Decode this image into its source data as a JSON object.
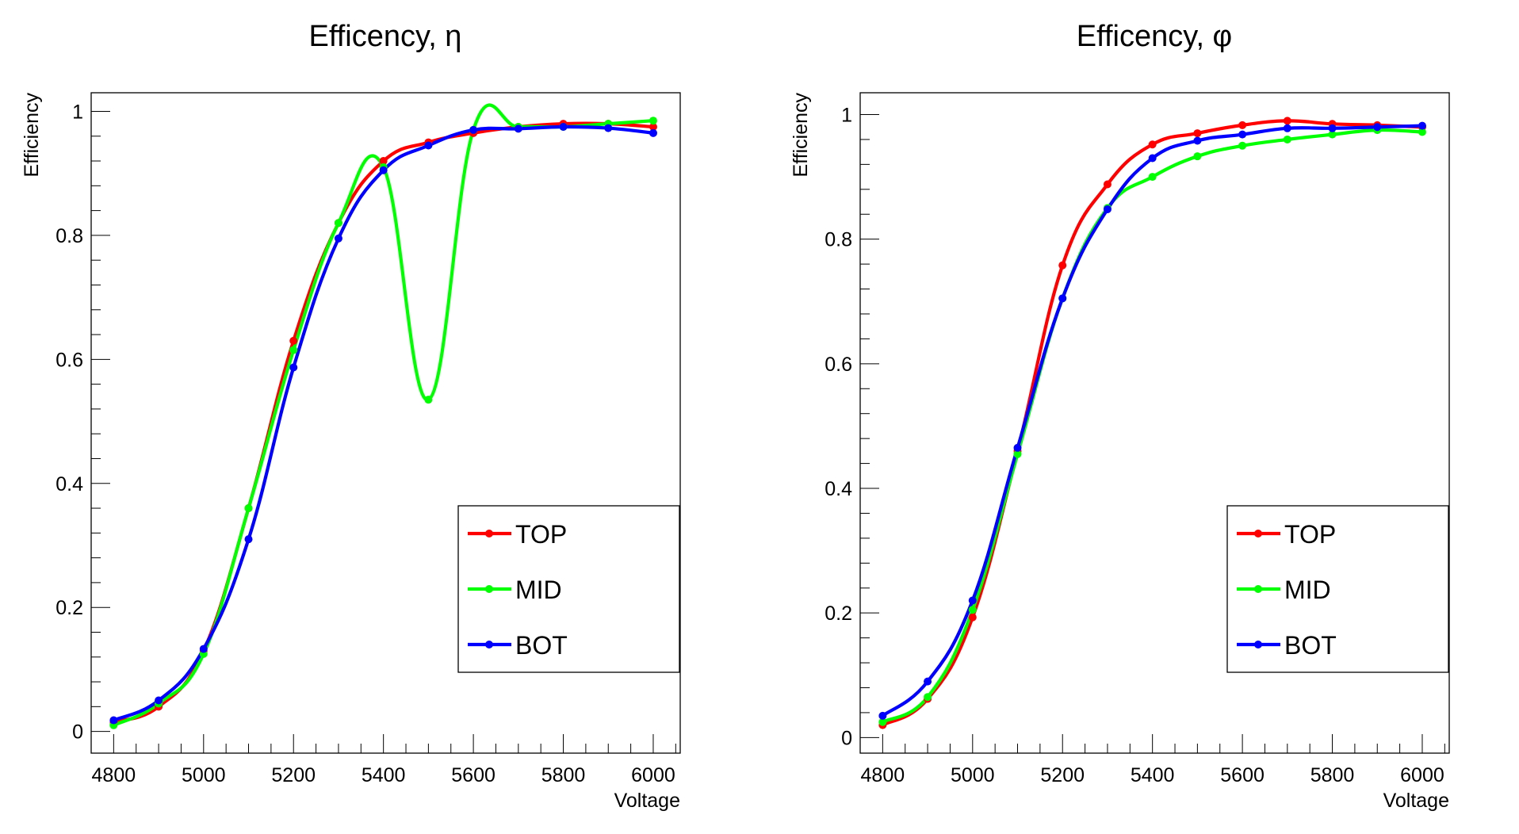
{
  "chart_data": [
    {
      "type": "line",
      "title": "Efficency, η",
      "xlabel": "Voltage",
      "ylabel": "Efficiency",
      "xlim": [
        4750,
        6060
      ],
      "ylim": [
        -0.035,
        1.03
      ],
      "x_ticks": [
        "4800",
        "5000",
        "5200",
        "5400",
        "5600",
        "5800",
        "6000"
      ],
      "y_ticks": [
        "0",
        "0.2",
        "0.4",
        "0.6",
        "0.8",
        "1"
      ],
      "legend_position": "bottom-right",
      "smooth": true,
      "grid": false,
      "x": [
        4800,
        4900,
        5000,
        5100,
        5200,
        5300,
        5400,
        5500,
        5600,
        5700,
        5800,
        5900,
        6000
      ],
      "series": [
        {
          "name": "TOP",
          "color": "#ff0000",
          "values": [
            0.015,
            0.04,
            0.13,
            0.36,
            0.63,
            0.82,
            0.92,
            0.95,
            0.965,
            0.975,
            0.98,
            0.98,
            0.975
          ]
        },
        {
          "name": "MID",
          "color": "#00ff00",
          "values": [
            0.01,
            0.045,
            0.125,
            0.36,
            0.615,
            0.82,
            0.91,
            0.535,
            0.97,
            0.975,
            0.975,
            0.98,
            0.985
          ]
        },
        {
          "name": "BOT",
          "color": "#0000ff",
          "values": [
            0.018,
            0.05,
            0.133,
            0.31,
            0.587,
            0.795,
            0.905,
            0.945,
            0.97,
            0.972,
            0.975,
            0.973,
            0.965
          ]
        }
      ]
    },
    {
      "type": "line",
      "title": "Efficency, φ",
      "xlabel": "Voltage",
      "ylabel": "Efficiency",
      "xlim": [
        4750,
        6060
      ],
      "ylim": [
        -0.025,
        1.035
      ],
      "x_ticks": [
        "4800",
        "5000",
        "5200",
        "5400",
        "5600",
        "5800",
        "6000"
      ],
      "y_ticks": [
        "0",
        "0.2",
        "0.4",
        "0.6",
        "0.8",
        "1"
      ],
      "legend_position": "bottom-right",
      "smooth": true,
      "grid": false,
      "x": [
        4800,
        4900,
        5000,
        5100,
        5200,
        5300,
        5400,
        5500,
        5600,
        5700,
        5800,
        5900,
        6000
      ],
      "series": [
        {
          "name": "TOP",
          "color": "#ff0000",
          "values": [
            0.02,
            0.062,
            0.193,
            0.46,
            0.758,
            0.888,
            0.952,
            0.97,
            0.983,
            0.99,
            0.985,
            0.983,
            0.98
          ]
        },
        {
          "name": "MID",
          "color": "#00ff00",
          "values": [
            0.025,
            0.065,
            0.205,
            0.455,
            0.705,
            0.85,
            0.9,
            0.933,
            0.95,
            0.96,
            0.968,
            0.975,
            0.972
          ]
        },
        {
          "name": "BOT",
          "color": "#0000ff",
          "values": [
            0.035,
            0.09,
            0.22,
            0.465,
            0.705,
            0.848,
            0.93,
            0.958,
            0.968,
            0.978,
            0.978,
            0.98,
            0.982
          ]
        }
      ]
    }
  ]
}
